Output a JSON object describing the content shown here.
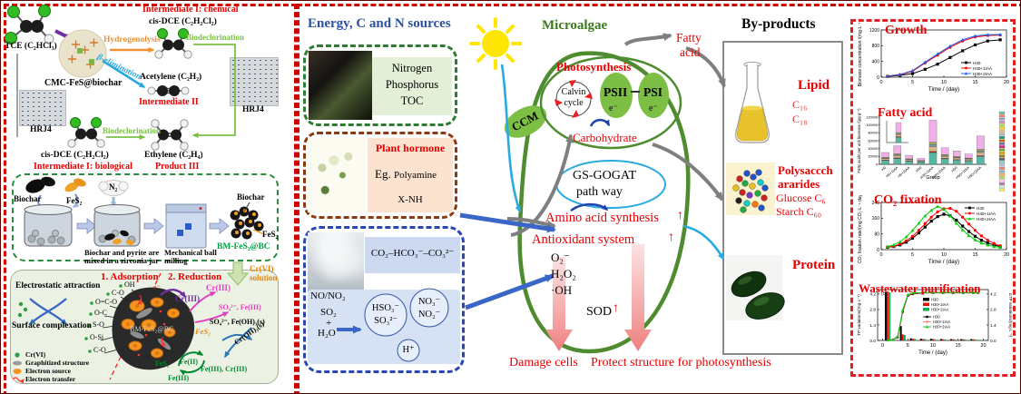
{
  "left": {
    "tce": "TCE (C₂HCl₃)",
    "cmc": "CMC-FeS@biochar",
    "hydrogenolysis": "Hydrogenolysis",
    "beta_elimination": "β-elimination",
    "intermediate1_chemical": "Intermediate I: chemical",
    "cis_dce": "cis-DCE (C₂H₂Cl₂)",
    "biodeclorination": "Biodeclorination",
    "acetylene": "Acetylene (C₂H₂)",
    "intermediate2": "Intermediate II",
    "hrj4": "HRJ4",
    "intermediate1_biological": "Intermediate I: biological",
    "ethylene": "Ethylene (C₂H₄)",
    "product3": "Product III",
    "mill": {
      "biochar": "Biochar",
      "fes2": "FeS₂",
      "n2": "N₂",
      "caption1": "Biochar and pyrite are",
      "caption2": "mixed in a zirconia jar",
      "milling1": "Mechanical ball",
      "milling2": "milling",
      "product": "BM-FeS₂@BC"
    },
    "mech": {
      "adsorption": "1. Adsorption",
      "reduction": "2. Reduction",
      "cr_solution1": "Cr(VI)",
      "cr_solution2": "solution",
      "electrostatic": "Electrostatic attraction",
      "surface": "Surface complexation",
      "blob": "BM-FeS₂@BC",
      "groups": [
        "OH",
        "C-O",
        "O=C-O",
        "O-C",
        "S-O",
        "O-Si",
        "C-O"
      ],
      "e": "e⁻",
      "cr3_a": "Cr(III)",
      "cr3_b": "Cr(III)",
      "so4_fe3": "SO₄²⁻, Fe(III)",
      "so4_feoh3": "SO₄²⁻, Fe(OH)₃(s)",
      "croh3": "Cr(OH)₃(s)",
      "fes2_label": "FeS₂",
      "fes2_cycle": "FeS₂",
      "fe2": "Fe(II)",
      "fe3": "Fe(III)",
      "fe3_cr3": "Fe(III), Cr(III)",
      "legend": [
        "Cr(VI)",
        "Graphitized structure",
        "Electron source",
        "Electron transfer"
      ]
    }
  },
  "middle": {
    "sources_title": "Energy, C and N sources",
    "nutrients": [
      "Nitrogen",
      "Phosphorus",
      "TOC"
    ],
    "plant_hormone": "Plant hormone",
    "eg": "Eg.",
    "polyamine": "Polyamine",
    "xnh": "X-NH",
    "carbon_species": "CO₂–HCO₃⁻–CO₃²⁻",
    "no_no2": "NO/NO₂",
    "so2": "SO₂",
    "plus": "+",
    "h2o": "H₂O",
    "hso3": "HSO₃⁻",
    "so32": "SO₃²⁻",
    "no3": "NO₃⁻",
    "no2": "NO₂⁻",
    "hplus": "H⁺",
    "microalgae_title": "Microalgae",
    "ccm": "CCM",
    "photosynthesis": "Photosynthesis",
    "calvin_1": "Calvin",
    "calvin_2": "cycle",
    "psii": "PSII",
    "psi": "PSI",
    "e_minus": "e⁻",
    "carbohydrate": "Carbohydrate",
    "fatty_1": "Fatty",
    "fatty_2": "acid",
    "gs_gogat_1": "GS-GOGAT",
    "gs_gogat_2": "path way",
    "amino": "Amino acid synthesis",
    "up_arrow": "↑",
    "antioxidant": "Antioxidant system",
    "ros": [
      "O₂⁻",
      "H₂O₂",
      "·OH"
    ],
    "sod": "SOD",
    "damage": "Damage cells",
    "protect": "Protect structure for photosynthesis",
    "byproducts_title": "By-products",
    "lipid": "Lipid",
    "c16": "C₁₆",
    "c18": "C₁₈",
    "poly_1": "Polysaccch",
    "poly_2": "ararides",
    "glucose": "Glucose C₆",
    "starch": "Starch C₆₀",
    "protein": "Protein"
  },
  "chart_data": [
    {
      "type": "line",
      "title": "Growth",
      "xlabel": "Time / (day)",
      "ylabel": "Biomass concentration /(mg·L⁻¹)",
      "xlim": [
        0,
        20
      ],
      "ylim": [
        0,
        1200
      ],
      "xticks": [
        0,
        5,
        10,
        15,
        20
      ],
      "yticks": [
        0,
        400,
        800,
        1200
      ],
      "legend_pos": "bottom-right",
      "x": [
        1,
        3,
        5,
        7,
        9,
        11,
        13,
        15,
        17,
        19
      ],
      "series": [
        {
          "name": "H30",
          "color": "#000000",
          "marker": "square",
          "values": [
            20,
            45,
            90,
            200,
            330,
            500,
            670,
            820,
            920,
            950
          ]
        },
        {
          "name": "H30+1IAA",
          "color": "#ff0000",
          "marker": "circle",
          "values": [
            25,
            60,
            150,
            360,
            560,
            760,
            920,
            1020,
            1060,
            1070
          ]
        },
        {
          "name": "H30+2IAA",
          "color": "#2060e8",
          "marker": "triangle",
          "values": [
            30,
            70,
            165,
            380,
            590,
            790,
            950,
            1050,
            1080,
            1085
          ]
        }
      ]
    },
    {
      "type": "stacked-bar",
      "title": "Fatty acid",
      "xlabel": "Group",
      "ylabel": "Fatty acids per unit biomass /(μg·g⁻¹)",
      "ylim": [
        0,
        120000
      ],
      "yticks": [
        0,
        20000,
        40000,
        60000,
        80000,
        100000,
        120000
      ],
      "categories": [
        "H0",
        "H0+1IAA",
        "H0+2IAA",
        "H30",
        "H30+1IAA",
        "H30+2IAA",
        "H50",
        "H50+1IAA",
        "H50+2IAA"
      ],
      "segment_colors": [
        "#57b7a2",
        "#b22222",
        "#d9b98c",
        "#8898b0",
        "#97a94e",
        "#f2aee8"
      ],
      "bars": [
        [
          10000,
          1000,
          3500,
          1500,
          1500,
          12500
        ],
        [
          15000,
          1500,
          5500,
          2500,
          2500,
          20000
        ],
        [
          8000,
          800,
          2800,
          1200,
          1200,
          9000
        ],
        [
          6000,
          500,
          2000,
          800,
          700,
          5000
        ],
        [
          30000,
          3000,
          12000,
          5000,
          6000,
          56000
        ],
        [
          14000,
          1400,
          5000,
          2100,
          2500,
          17000
        ],
        [
          11000,
          1100,
          4200,
          1700,
          2000,
          14000
        ],
        [
          9000,
          900,
          3200,
          1300,
          1600,
          10000
        ],
        [
          20000,
          2000,
          8000,
          3500,
          4500,
          34000
        ]
      ]
    },
    {
      "type": "line",
      "title": "CO₂ fixation",
      "xlabel": "Time / (day)",
      "ylabel": "CO₂ fixation rate/(mg CO₂·L⁻¹·day⁻¹)",
      "xlim": [
        0,
        20
      ],
      "ylim": [
        0,
        240
      ],
      "xticks": [
        0,
        5,
        10,
        15,
        20
      ],
      "yticks": [
        0,
        80,
        160,
        240
      ],
      "legend_pos": "top-right",
      "x": [
        1,
        2,
        3,
        4,
        5,
        6,
        7,
        8,
        9,
        10,
        11,
        12,
        13,
        14,
        15,
        16,
        17,
        18,
        19
      ],
      "series": [
        {
          "name": "H30",
          "color": "#000000",
          "marker": "square",
          "values": [
            12,
            16,
            24,
            38,
            58,
            85,
            115,
            145,
            168,
            180,
            172,
            150,
            120,
            92,
            68,
            48,
            34,
            24,
            16
          ]
        },
        {
          "name": "H30+1IAA",
          "color": "#ff0000",
          "marker": "circle",
          "values": [
            13,
            18,
            28,
            45,
            68,
            98,
            132,
            165,
            192,
            208,
            210,
            195,
            165,
            130,
            98,
            70,
            48,
            32,
            20
          ]
        },
        {
          "name": "H30+2IAA",
          "color": "#00cc00",
          "marker": "triangle",
          "values": [
            16,
            24,
            40,
            65,
            98,
            135,
            172,
            200,
            220,
            205,
            172,
            135,
            100,
            72,
            50,
            34,
            24,
            16,
            12
          ]
        }
      ]
    },
    {
      "type": "bar-line",
      "title": "Wastewater purification",
      "corner_label": "(c)",
      "xlabel": "Time / (day)",
      "ylabel_left": "TP variations/(mg·L⁻¹)",
      "ylabel_right": "ΔTP variations/(mg·L⁻¹)",
      "xlim": [
        -1,
        21
      ],
      "ylim": [
        0,
        4.6
      ],
      "xticks": [
        0,
        5,
        10,
        15,
        20
      ],
      "yticks": [
        0.0,
        1.4,
        2.8,
        4.2
      ],
      "bar_days": [
        1,
        4,
        6,
        8,
        10,
        12,
        14,
        16,
        18
      ],
      "bar_series": [
        {
          "name": "H30",
          "color": "#000000",
          "values": [
            4.35,
            1.3,
            0.2,
            0.15,
            0.15,
            0.13,
            0.12,
            0.12,
            0.12
          ]
        },
        {
          "name": "H30+1IAA",
          "color": "#ff0000",
          "values": [
            4.35,
            0.55,
            0.15,
            0.12,
            0.1,
            0.1,
            0.1,
            0.1,
            0.1
          ]
        },
        {
          "name": "H30+2IAA",
          "color": "#00b050",
          "values": [
            4.35,
            0.5,
            0.15,
            0.12,
            0.1,
            0.1,
            0.1,
            0.1,
            0.1
          ]
        }
      ],
      "line_x": [
        1,
        2,
        3,
        4,
        5,
        6,
        8,
        10,
        12,
        14,
        16,
        18,
        19
      ],
      "line_series": [
        {
          "name": "H30",
          "color": "#000000",
          "marker": "square",
          "values": [
            0.02,
            0.05,
            0.3,
            2.6,
            4.05,
            4.2,
            4.3,
            4.3,
            4.3,
            4.3,
            4.3,
            4.3,
            4.3
          ]
        },
        {
          "name": "H30+1IAA",
          "color": "#ff7070",
          "marker": "circle",
          "values": [
            0.02,
            0.05,
            0.35,
            2.7,
            4.1,
            4.25,
            4.32,
            4.32,
            4.32,
            4.32,
            4.32,
            4.32,
            4.32
          ]
        },
        {
          "name": "H30+2IAA",
          "color": "#00cc00",
          "marker": "triangle",
          "values": [
            0.02,
            0.06,
            0.4,
            2.8,
            4.15,
            4.3,
            4.35,
            4.35,
            4.35,
            4.35,
            4.35,
            4.35,
            4.35
          ]
        }
      ]
    }
  ]
}
